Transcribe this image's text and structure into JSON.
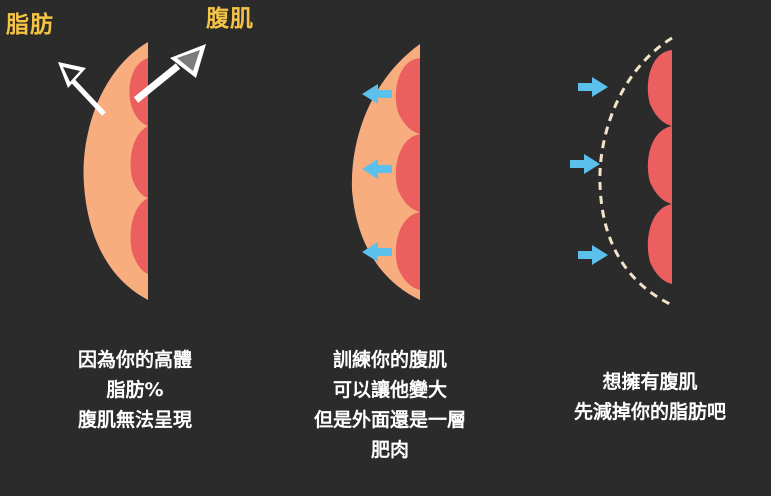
{
  "labels": {
    "fat": "脂肪",
    "muscle": "腹肌"
  },
  "captions": {
    "panel1": [
      "因為你的高體",
      "脂肪%",
      "腹肌無法呈現"
    ],
    "panel2": [
      "訓練你的腹肌",
      "可以讓他變大",
      "但是外面還是一層",
      "肥肉"
    ],
    "panel3": [
      "想擁有腹肌",
      "先減掉你的脂肪吧"
    ]
  },
  "colors": {
    "background": "#2b2b2b",
    "fat": "#f8ad7e",
    "muscle": "#ec5f5f",
    "muscle_edge": "#c94747",
    "arrow_push": "#5bc0eb",
    "label": "#f6c445",
    "dashed_outline": "#f3e3c8"
  },
  "icons": [
    "arrow-up-left-icon",
    "arrow-up-right-icon",
    "arrow-left-icon",
    "arrow-right-icon"
  ]
}
